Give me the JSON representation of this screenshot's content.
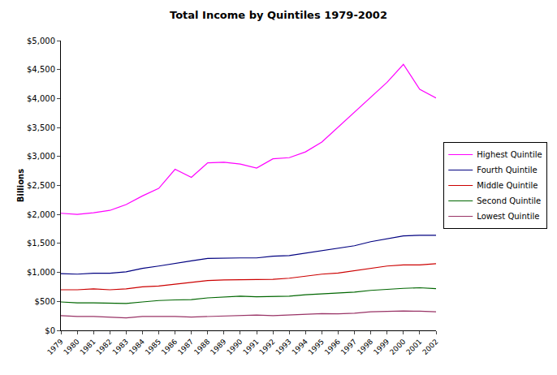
{
  "chart_data": {
    "type": "line",
    "title": "Total Income by Quintiles 1979-2002",
    "y_label": "Billions",
    "categories": [
      "1979",
      "1980",
      "1981",
      "1982",
      "1983",
      "1984",
      "1985",
      "1986",
      "1987",
      "1988",
      "1989",
      "1990",
      "1991",
      "1992",
      "1993",
      "1994",
      "1995",
      "1996",
      "1997",
      "1998",
      "1999",
      "2000",
      "2001",
      "2002"
    ],
    "series": [
      {
        "name": "Highest Quintile",
        "color": "#ff00ff",
        "values": [
          2020,
          2000,
          2030,
          2070,
          2170,
          2320,
          2450,
          2780,
          2640,
          2890,
          2900,
          2870,
          2800,
          2960,
          2980,
          3080,
          3250,
          3510,
          3770,
          4020,
          4280,
          4590,
          4160,
          4010
        ]
      },
      {
        "name": "Fourth Quintile",
        "color": "#000080",
        "values": [
          980,
          970,
          985,
          985,
          1010,
          1070,
          1110,
          1160,
          1200,
          1240,
          1250,
          1250,
          1250,
          1280,
          1290,
          1330,
          1380,
          1420,
          1460,
          1530,
          1580,
          1630,
          1640,
          1640
        ]
      },
      {
        "name": "Middle Quintile",
        "color": "#cc0000",
        "values": [
          700,
          700,
          715,
          700,
          715,
          750,
          765,
          800,
          830,
          860,
          870,
          870,
          880,
          880,
          900,
          940,
          970,
          990,
          1030,
          1070,
          1110,
          1130,
          1130,
          1150
        ]
      },
      {
        "name": "Second Quintile",
        "color": "#006600",
        "values": [
          490,
          475,
          475,
          475,
          465,
          490,
          515,
          525,
          530,
          560,
          575,
          590,
          580,
          580,
          590,
          615,
          630,
          645,
          660,
          690,
          710,
          725,
          735,
          720
        ]
      },
      {
        "name": "Lowest Quintile",
        "color": "#993366",
        "values": [
          255,
          240,
          240,
          230,
          215,
          240,
          245,
          240,
          230,
          240,
          245,
          255,
          265,
          255,
          265,
          270,
          290,
          285,
          295,
          320,
          330,
          335,
          330,
          320
        ]
      }
    ],
    "ylim": [
      0,
      5000
    ],
    "yticks": [
      {
        "value": 0,
        "label": "$0"
      },
      {
        "value": 500,
        "label": "$500"
      },
      {
        "value": 1000,
        "label": "$1,000"
      },
      {
        "value": 1500,
        "label": "$1,500"
      },
      {
        "value": 2000,
        "label": "$2,000"
      },
      {
        "value": 2500,
        "label": "$2,500"
      },
      {
        "value": 3000,
        "label": "$3,000"
      },
      {
        "value": 3500,
        "label": "$3,500"
      },
      {
        "value": 4000,
        "label": "$4,000"
      },
      {
        "value": 4500,
        "label": "$4,500"
      },
      {
        "value": 5000,
        "label": "$5,000"
      }
    ],
    "grid": false,
    "legend": "right"
  }
}
